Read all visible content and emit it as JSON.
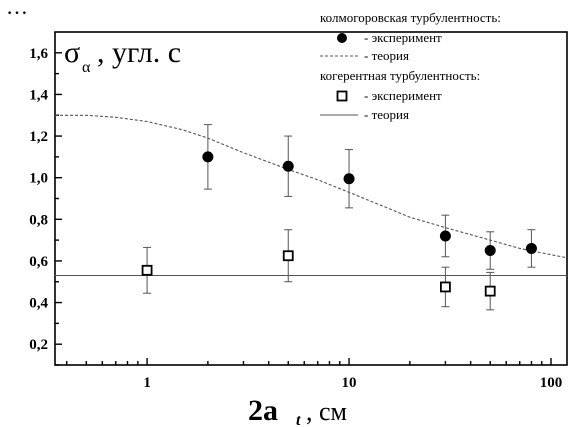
{
  "top_text_fragment": "…",
  "chart_data": {
    "type": "scatter",
    "x_scale": "log",
    "xlim": [
      0.35,
      120
    ],
    "ylim": [
      0.1,
      1.7
    ],
    "x_ticks": [
      1,
      10,
      100
    ],
    "x_tick_labels": [
      "1",
      "10",
      "100"
    ],
    "y_ticks": [
      0.2,
      0.4,
      0.6,
      0.8,
      1.0,
      1.2,
      1.4,
      1.6
    ],
    "y_tick_labels": [
      "0,2",
      "0,4",
      "0,6",
      "0,8",
      "1,0",
      "1,2",
      "1,4",
      "1,6"
    ],
    "ylabel": {
      "main": "σ",
      "sub": "α",
      "rest": ", угл. с"
    },
    "xlabel": {
      "main": "2a",
      "sub": "t",
      "rest": ", см"
    },
    "grid": false,
    "legend_position": "top-right",
    "legend": [
      {
        "kind": "header",
        "text": "колмогоровская турбулентность:"
      },
      {
        "kind": "filled-circle",
        "text": "- эксперимент"
      },
      {
        "kind": "dotted-line",
        "text": "- теория"
      },
      {
        "kind": "header",
        "text": "когерентная турбулентность:"
      },
      {
        "kind": "open-square",
        "text": "- эксперимент"
      },
      {
        "kind": "solid-line",
        "text": "- теория"
      }
    ],
    "series": [
      {
        "group": "колмогоровская турбулентность",
        "kind": "experiment",
        "marker": "filled-circle",
        "points": [
          {
            "x": 2,
            "y": 1.1,
            "err": 0.155
          },
          {
            "x": 5,
            "y": 1.055,
            "err": 0.145
          },
          {
            "x": 10,
            "y": 0.995,
            "err": 0.14
          },
          {
            "x": 30,
            "y": 0.72,
            "err": 0.1
          },
          {
            "x": 50,
            "y": 0.65,
            "err": 0.09
          },
          {
            "x": 80,
            "y": 0.66,
            "err": 0.09
          }
        ]
      },
      {
        "group": "колмогоровская турбулентность",
        "kind": "theory",
        "line": "dotted",
        "points": [
          {
            "x": 0.35,
            "y": 1.3
          },
          {
            "x": 0.5,
            "y": 1.3
          },
          {
            "x": 0.7,
            "y": 1.29
          },
          {
            "x": 1,
            "y": 1.27
          },
          {
            "x": 1.5,
            "y": 1.23
          },
          {
            "x": 2,
            "y": 1.19
          },
          {
            "x": 3,
            "y": 1.12
          },
          {
            "x": 5,
            "y": 1.04
          },
          {
            "x": 7,
            "y": 0.99
          },
          {
            "x": 10,
            "y": 0.93
          },
          {
            "x": 15,
            "y": 0.86
          },
          {
            "x": 20,
            "y": 0.81
          },
          {
            "x": 30,
            "y": 0.76
          },
          {
            "x": 50,
            "y": 0.7
          },
          {
            "x": 70,
            "y": 0.66
          },
          {
            "x": 100,
            "y": 0.63
          },
          {
            "x": 120,
            "y": 0.615
          }
        ]
      },
      {
        "group": "когерентная турбулентность",
        "kind": "experiment",
        "marker": "open-square",
        "points": [
          {
            "x": 1,
            "y": 0.555,
            "err": 0.11
          },
          {
            "x": 5,
            "y": 0.625,
            "err": 0.125
          },
          {
            "x": 30,
            "y": 0.475,
            "err": 0.095
          },
          {
            "x": 50,
            "y": 0.455,
            "err": 0.09
          }
        ]
      },
      {
        "group": "когерентная турбулентность",
        "kind": "theory",
        "line": "solid",
        "points": [
          {
            "x": 0.35,
            "y": 0.53
          },
          {
            "x": 120,
            "y": 0.53
          }
        ]
      }
    ]
  }
}
